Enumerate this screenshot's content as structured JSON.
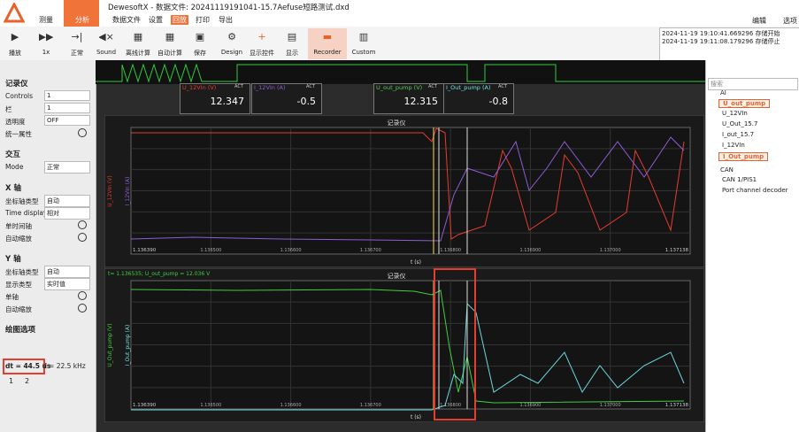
{
  "app": {
    "logo_buttons": [
      "测量",
      "分析"
    ],
    "title": "DewesoftX - 数据文件: 20241119191041-15.7Aefuse短路测试.dxd",
    "menu": [
      "数据文件",
      "设置",
      "回放",
      "打印",
      "导出"
    ],
    "right_menu": [
      "编辑",
      "选项"
    ]
  },
  "toolbar": [
    "播放",
    "1x",
    "正常",
    "Sound",
    "离线计算",
    "自动计算",
    "保存",
    "Design",
    "显示控件",
    "显示",
    "Recorder",
    "Custom"
  ],
  "log": [
    "2024-11-19 19:10:41.669296 存储开始",
    "2024-11-19 19:11:08.179296 存储停止"
  ],
  "left_panel": {
    "sections": [
      {
        "title": "记录仪",
        "rows": [
          [
            "Controls",
            "1"
          ],
          [
            "栏",
            "1"
          ],
          [
            "透明度",
            "OFF"
          ],
          [
            "统一属性"
          ]
        ]
      },
      {
        "title": "交互",
        "rows": [
          [
            "Mode",
            "正常"
          ]
        ]
      },
      {
        "title": "X 轴",
        "rows": [
          [
            "坐标轴类型",
            "自动"
          ],
          [
            "Time display",
            "相对"
          ],
          [
            "单时间轴"
          ],
          [
            "自动缩放"
          ]
        ]
      },
      {
        "title": "Y 轴",
        "rows": [
          [
            "坐标轴类型",
            "自动"
          ],
          [
            "显示类型",
            "实时值"
          ],
          [
            "单轴"
          ],
          [
            "自动缩放"
          ]
        ]
      },
      {
        "title": "绘图选项",
        "rows": []
      }
    ],
    "dt": "dt = 44.5 us",
    "f": "f = 22.5 kHz",
    "locks": [
      "1",
      "2"
    ]
  },
  "meters": [
    {
      "name": "U_12VIn (V)",
      "tag": "ACT",
      "value": "12.347"
    },
    {
      "name": "I_12VIn (A)",
      "tag": "ACT",
      "value": "-0.5"
    },
    {
      "name": "U_out_pump (V)",
      "tag": "ACT",
      "value": "12.315"
    },
    {
      "name": "I_Out_pump (A)",
      "tag": "ACT",
      "value": "-0.8"
    }
  ],
  "charts": [
    {
      "title": "记录仪",
      "y_labels": [
        "U_12VIn (V)",
        "I_12VIn (A)"
      ],
      "x_label": "t (s)",
      "x_start": "1.136390",
      "x_end": "1.137138",
      "xticks": [
        "1.136500",
        "1.136600",
        "1.136700",
        "1.136800",
        "1.136900",
        "1.137000"
      ]
    },
    {
      "title": "记录仪",
      "cursor": "t= 1.136535; U_out_pump = 12.036 V",
      "y_labels": [
        "U_Out_pump (V)",
        "I_Out_pump (A)"
      ],
      "x_label": "t (s)",
      "x_start": "1.136390",
      "x_end": "1.137138",
      "xticks": [
        "1.136500",
        "1.136600",
        "1.136700",
        "1.136800",
        "1.136900",
        "1.137000"
      ]
    }
  ],
  "tree": {
    "search": "搜索",
    "groups": [
      {
        "name": "AI",
        "items": [
          "U_out_pump",
          "U_12VIn",
          "U_Out_15.7",
          "I_out_15.7",
          "I_12VIn",
          "I_Out_pump"
        ]
      },
      {
        "name": "CAN",
        "items": [
          "CAN 1/PIS1",
          "Port channel decoder"
        ]
      }
    ]
  }
}
